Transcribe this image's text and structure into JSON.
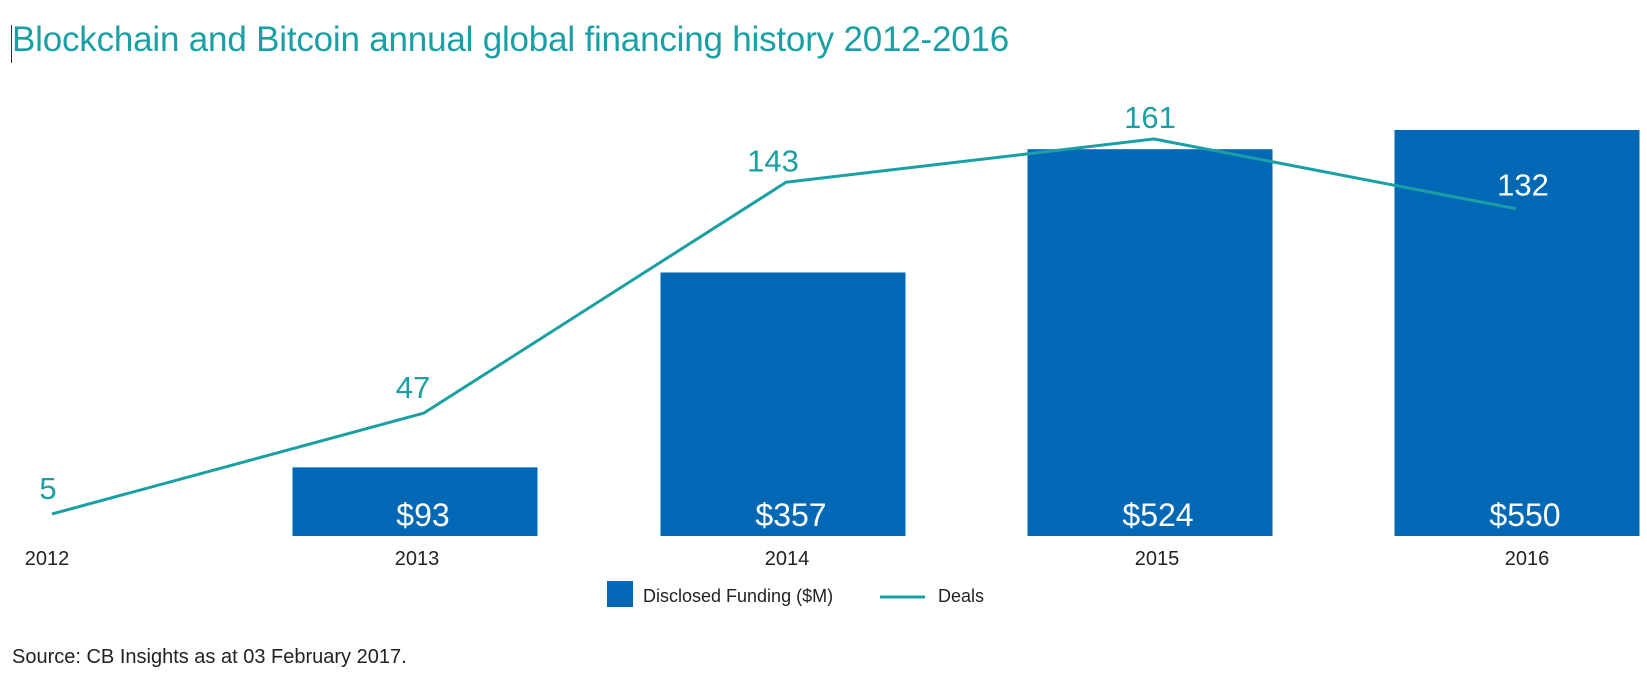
{
  "title": "Blockchain and Bitcoin annual global financing history 2012-2016",
  "source": "Source: CB Insights as at 03 February 2017.",
  "colors": {
    "title": "#1a9fa5",
    "bar": "#0068b5",
    "line": "#1a9fa5",
    "bar_label": "#ffffff",
    "axis_label": "#222222"
  },
  "chart_data": {
    "type": "bar",
    "categories": [
      "2012",
      "2013",
      "2014",
      "2015",
      "2016"
    ],
    "series": [
      {
        "name": "Disclosed Funding ($M)",
        "type": "bar",
        "values": [
          null,
          93,
          357,
          524,
          550
        ],
        "labels": [
          "",
          "$93",
          "$357",
          "$524",
          "$550"
        ]
      },
      {
        "name": "Deals",
        "type": "line",
        "values": [
          5,
          47,
          143,
          161,
          132
        ],
        "labels": [
          "5",
          "47",
          "143",
          "161",
          "132"
        ]
      }
    ],
    "legend": {
      "position": "bottom-center",
      "items": [
        "Disclosed Funding ($M)",
        "Deals"
      ]
    },
    "grid": false
  }
}
